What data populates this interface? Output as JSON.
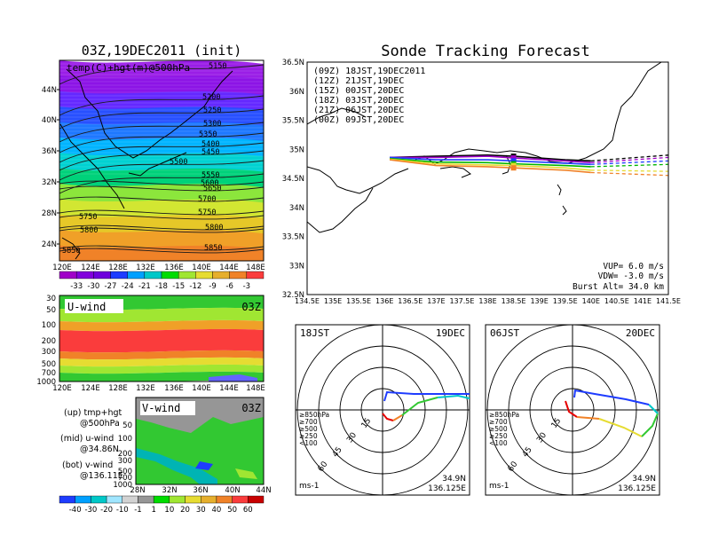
{
  "temp_panel": {
    "title": "03Z,19DEC2011 (init)",
    "label": "temp(C)+hgt(m)@500hPa",
    "lat_ticks": [
      "44N",
      "40N",
      "36N",
      "32N",
      "28N",
      "24N"
    ],
    "lon_ticks": [
      "120E",
      "124E",
      "128E",
      "132E",
      "136E",
      "140E",
      "144E",
      "148E"
    ],
    "contours": [
      "5150",
      "5200",
      "5250",
      "5300",
      "5350",
      "5400",
      "5450",
      "5500",
      "5550",
      "5600",
      "5650",
      "5700",
      "5750",
      "5750",
      "5800",
      "5800",
      "5850",
      "5850"
    ],
    "colorbar_labels": [
      "-33",
      "-30",
      "-27",
      "-24",
      "-21",
      "-18",
      "-15",
      "-12",
      "-9",
      "-6",
      "-3"
    ],
    "colorbar_colors": [
      "#a000c8",
      "#8200dc",
      "#6e00dc",
      "#1e3cff",
      "#00a0ff",
      "#00c8c8",
      "#00dc00",
      "#a0e632",
      "#e6dc32",
      "#e6af2d",
      "#f08228",
      "#fa3c3c"
    ]
  },
  "uwind_panel": {
    "label": "U-wind",
    "time": "03Z",
    "p_ticks": [
      "30",
      "50",
      "100",
      "200",
      "300",
      "500",
      "700",
      "1000"
    ],
    "lon_ticks": [
      "120E",
      "124E",
      "128E",
      "132E",
      "136E",
      "140E",
      "144E",
      "148E"
    ]
  },
  "vwind_panel": {
    "label": "V-wind",
    "time": "03Z",
    "p_ticks": [
      "50",
      "100",
      "200",
      "300",
      "500",
      "700",
      "1000"
    ],
    "lat_ticks": [
      "28N",
      "32N",
      "36N",
      "40N",
      "44N"
    ],
    "colorbar_labels": [
      "-40",
      "-30",
      "-20",
      "-10",
      "-1",
      "1",
      "10",
      "20",
      "30",
      "40",
      "50",
      "60"
    ],
    "colorbar_colors": [
      "#1e3cff",
      "#00a0ff",
      "#00c8c8",
      "#a0e6ff",
      "#d2d2d2",
      "#969696",
      "#00dc00",
      "#a0e632",
      "#e6dc32",
      "#e6af2d",
      "#f08228",
      "#fa3c3c",
      "#c80000"
    ]
  },
  "legend_notes": [
    "(up) tmp+hgt",
    "@500hPa",
    "(mid) u-wind",
    "@34.86N",
    "(bot) v-wind",
    "@136.11E"
  ],
  "track_panel": {
    "title": "Sonde Tracking Forecast",
    "lat_ticks": [
      "36.5N",
      "36N",
      "35.5N",
      "35N",
      "34.5N",
      "34N",
      "33.5N",
      "33N",
      "32.5N"
    ],
    "lon_ticks": [
      "134.5E",
      "135E",
      "135.5E",
      "136E",
      "136.5E",
      "137E",
      "137.5E",
      "138E",
      "138.5E",
      "139E",
      "139.5E",
      "140E",
      "140.5E",
      "141E",
      "141.5E"
    ],
    "runs": [
      {
        "text": "(09Z)  18JST,19DEC2011",
        "color": "#000000"
      },
      {
        "text": "(12Z)  21JST,19DEC",
        "color": "#a000c8"
      },
      {
        "text": "(15Z)  00JST,20DEC",
        "color": "#1e3cff"
      },
      {
        "text": "(18Z)  03JST,20DEC",
        "color": "#00b400"
      },
      {
        "text": "(21Z)  06JST,20DEC",
        "color": "#e6dc32"
      },
      {
        "text": "(00Z)  09JST,20DEC",
        "color": "#f08228"
      }
    ],
    "vup": "VUP=  6.0  m/s",
    "vdw": "VDW= -3.0  m/s",
    "burst": "Burst Alt=  34.0  km"
  },
  "polar_panels": [
    {
      "time": "18JST",
      "date": "19DEC",
      "ring_labels": [
        "15",
        "30",
        "45",
        "60"
      ],
      "lat": "34.9N",
      "lon": "136.125E",
      "units": "ms-1"
    },
    {
      "time": "06JST",
      "date": "20DEC",
      "ring_labels": [
        "15",
        "30",
        "45",
        "60"
      ],
      "lat": "34.9N",
      "lon": "136.125E",
      "units": "ms-1"
    }
  ],
  "polar_legend": [
    {
      "text": "≥850hPa",
      "color": "#e60000"
    },
    {
      "text": "≥700",
      "color": "#f08228"
    },
    {
      "text": "≥500",
      "color": "#00dc00"
    },
    {
      "text": "≥250",
      "color": "#00c8c8"
    },
    {
      "text": "<100",
      "color": "#1e3cff"
    }
  ],
  "chart_data": [
    {
      "type": "heatmap",
      "title": "03Z,19DEC2011 (init)",
      "subtitle": "temp(C)+hgt(m)@500hPa",
      "x_range": [
        120,
        150
      ],
      "y_range": [
        22,
        47
      ],
      "colorbar": [
        -33,
        -30,
        -27,
        -24,
        -21,
        -18,
        -15,
        -12,
        -9,
        -6,
        -3
      ],
      "contour_levels": [
        5150,
        5200,
        5250,
        5300,
        5350,
        5400,
        5450,
        5500,
        5550,
        5600,
        5650,
        5700,
        5750,
        5800,
        5850
      ]
    },
    {
      "type": "heatmap",
      "title": "U-wind",
      "x_range": [
        120,
        150
      ],
      "y_ticks": [
        30,
        50,
        100,
        200,
        300,
        500,
        700,
        1000
      ]
    },
    {
      "type": "heatmap",
      "title": "V-wind",
      "x_range": [
        28,
        44
      ],
      "colorbar": [
        -40,
        -30,
        -20,
        -10,
        -1,
        1,
        10,
        20,
        30,
        40,
        50,
        60
      ]
    },
    {
      "type": "line",
      "title": "Sonde Tracking Forecast",
      "x_range": [
        134.5,
        141.5
      ],
      "y_range": [
        32.5,
        36.5
      ],
      "series": [
        {
          "name": "(09Z) 18JST,19DEC2011",
          "x": [
            136.1,
            137.0,
            138.0,
            138.5,
            139.5,
            140.0,
            141.5
          ],
          "y": [
            34.86,
            34.88,
            34.9,
            34.88,
            34.82,
            34.8,
            34.9
          ]
        },
        {
          "name": "(12Z) 21JST,19DEC",
          "x": [
            136.1,
            137.0,
            138.0,
            138.5,
            139.5,
            140.0,
            141.5
          ],
          "y": [
            34.86,
            34.86,
            34.88,
            34.85,
            34.8,
            34.77,
            34.86
          ]
        },
        {
          "name": "(15Z) 00JST,20DEC",
          "x": [
            136.1,
            137.0,
            138.0,
            138.5,
            139.5,
            140.0,
            141.5
          ],
          "y": [
            34.86,
            34.82,
            34.82,
            34.8,
            34.76,
            34.74,
            34.8
          ]
        },
        {
          "name": "(18Z) 03JST,20DEC",
          "x": [
            136.1,
            137.0,
            138.0,
            138.5,
            139.5,
            140.0,
            141.5
          ],
          "y": [
            34.84,
            34.78,
            34.77,
            34.75,
            34.72,
            34.7,
            34.74
          ]
        },
        {
          "name": "(21Z) 06JST,20DEC",
          "x": [
            136.1,
            137.0,
            138.0,
            138.5,
            139.5,
            140.0,
            141.5
          ],
          "y": [
            34.83,
            34.75,
            34.73,
            34.72,
            34.68,
            34.64,
            34.62
          ]
        },
        {
          "name": "(00Z) 09JST,20DEC",
          "x": [
            136.1,
            137.0,
            138.0,
            138.5,
            139.5,
            140.0,
            141.5
          ],
          "y": [
            34.82,
            34.72,
            34.7,
            34.68,
            34.64,
            34.6,
            34.55
          ]
        }
      ]
    }
  ]
}
